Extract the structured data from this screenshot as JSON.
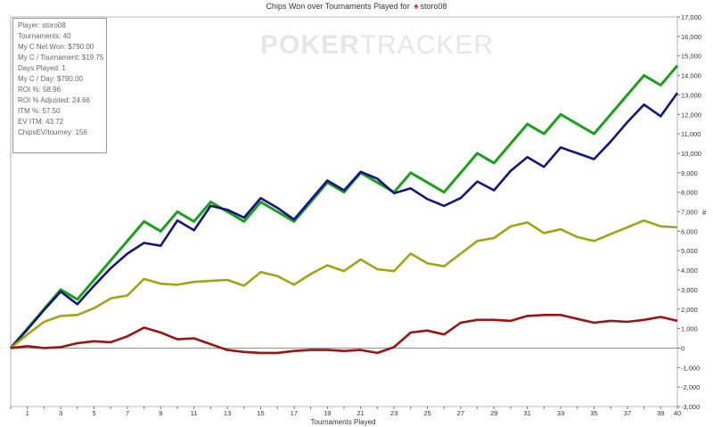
{
  "header": {
    "title_prefix": "Chips Won over Tournaments Played for",
    "player": "storo08"
  },
  "watermark": {
    "bold": "POKER",
    "light": "TRACKER"
  },
  "stats": [
    "Player: storo08",
    "Tournaments: 40",
    "My C Net Won: $790.00",
    "My C / Tournament: $19.75",
    "Days Played: 1",
    "My C / Day: $790.00",
    "ROI %: 58.96",
    "ROI % Adjusted: 24.66",
    "ITM %: 57.50",
    "EV ITM: 43.72",
    "ChipsEV/tourney: 156"
  ],
  "chart_data": {
    "type": "line",
    "xlabel": "Tournaments Played",
    "ylabel": "#",
    "xlim": [
      0,
      40
    ],
    "ylim": [
      -3000,
      17000
    ],
    "xticks": [
      1,
      3,
      5,
      7,
      9,
      11,
      13,
      15,
      17,
      19,
      21,
      23,
      25,
      27,
      29,
      31,
      33,
      35,
      37,
      39,
      40
    ],
    "yticks": [
      -3000,
      -2000,
      -1000,
      0,
      1000,
      2000,
      3000,
      4000,
      5000,
      6000,
      7000,
      8000,
      9000,
      10000,
      11000,
      12000,
      13000,
      14000,
      15000,
      16000,
      17000
    ],
    "ytick_labels": [
      "-3,000",
      "-2,000",
      "-1,000",
      "0",
      "1,000",
      "2,000",
      "3,000",
      "4,000",
      "5,000",
      "6,000",
      "7,000",
      "8,000",
      "9,000",
      "10,000",
      "11,000",
      "12,000",
      "13,000",
      "14,000",
      "15,000",
      "16,000",
      "17,000"
    ],
    "grid": false,
    "x": [
      0,
      1,
      2,
      3,
      4,
      5,
      6,
      7,
      8,
      9,
      10,
      11,
      12,
      13,
      14,
      15,
      16,
      17,
      18,
      19,
      20,
      21,
      22,
      23,
      24,
      25,
      26,
      27,
      28,
      29,
      30,
      31,
      32,
      33,
      34,
      35,
      36,
      37,
      38,
      39,
      40
    ],
    "series": [
      {
        "color": "#1aa01a",
        "values": [
          0,
          1000,
          2000,
          3000,
          2500,
          3500,
          4500,
          5500,
          6500,
          6000,
          7000,
          6500,
          7500,
          7000,
          6500,
          7500,
          7000,
          6500,
          7500,
          8500,
          8000,
          9000,
          8500,
          8000,
          9000,
          8500,
          8000,
          9000,
          10000,
          9500,
          10500,
          11500,
          11000,
          12000,
          11500,
          11000,
          12000,
          13000,
          14000,
          13500,
          14500
        ]
      },
      {
        "color": "#141480",
        "values": [
          0,
          950,
          1950,
          2900,
          2250,
          3200,
          4100,
          4850,
          5400,
          5250,
          6550,
          6050,
          7300,
          7100,
          6700,
          7700,
          7200,
          6600,
          7600,
          8600,
          8100,
          9050,
          8700,
          7950,
          8200,
          7650,
          7300,
          7700,
          8550,
          8100,
          9100,
          9800,
          9300,
          10300,
          10000,
          9700,
          10600,
          11600,
          12500,
          11900,
          13100
        ]
      },
      {
        "color": "#a3a314",
        "values": [
          0,
          700,
          1350,
          1650,
          1700,
          2050,
          2550,
          2700,
          3550,
          3300,
          3250,
          3400,
          3450,
          3500,
          3200,
          3900,
          3700,
          3250,
          3800,
          4250,
          3950,
          4550,
          4050,
          3950,
          4850,
          4350,
          4200,
          4850,
          5500,
          5650,
          6250,
          6450,
          5900,
          6100,
          5700,
          5500,
          5850,
          6200,
          6550,
          6250,
          6200
        ]
      },
      {
        "color": "#9a1414",
        "values": [
          0,
          100,
          0,
          50,
          250,
          350,
          300,
          600,
          1050,
          800,
          450,
          500,
          200,
          -100,
          -200,
          -250,
          -250,
          -150,
          -100,
          -100,
          -150,
          -100,
          -250,
          50,
          800,
          900,
          700,
          1300,
          1450,
          1450,
          1400,
          1650,
          1700,
          1700,
          1500,
          1300,
          1400,
          1350,
          1450,
          1600,
          1400
        ]
      }
    ]
  }
}
